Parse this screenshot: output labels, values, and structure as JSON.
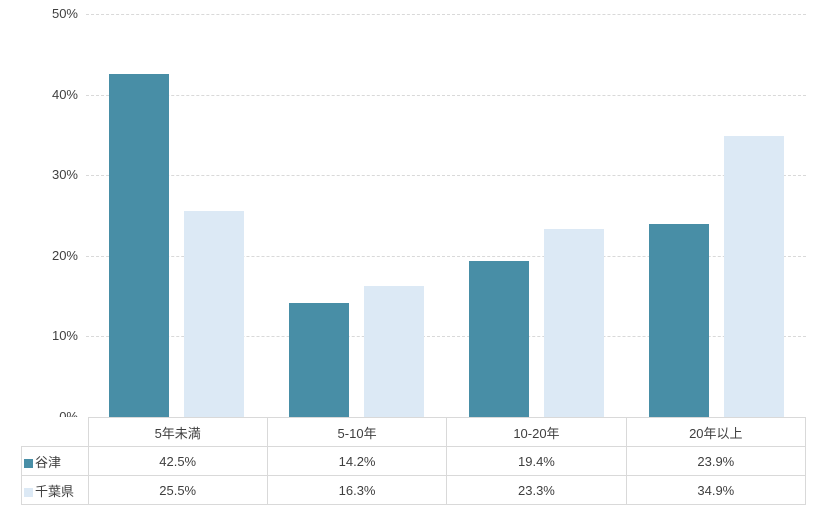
{
  "page": {
    "background": "#ffffff",
    "text_color": "#3f3f3f",
    "gridline_color": "#d9d9d9",
    "table_border_color": "#d9d9d9"
  },
  "chart_data": {
    "type": "bar",
    "title": "",
    "xlabel": "",
    "ylabel": "",
    "categories": [
      "5年未満",
      "5-10年",
      "10-20年",
      "20年以上"
    ],
    "series": [
      {
        "name": "谷津",
        "color": "#488ea6",
        "values": [
          42.5,
          14.2,
          19.4,
          23.9
        ],
        "formatted": [
          "42.5%",
          "14.2%",
          "19.4%",
          "23.9%"
        ]
      },
      {
        "name": "千葉県",
        "color": "#dce9f5",
        "values": [
          25.5,
          16.3,
          23.3,
          34.9
        ],
        "formatted": [
          "25.5%",
          "16.3%",
          "23.3%",
          "34.9%"
        ]
      }
    ],
    "ylim": [
      0,
      50
    ],
    "yticks": [
      0,
      10,
      20,
      30,
      40,
      50
    ],
    "ytick_labels": [
      "0%",
      "10%",
      "20%",
      "30%",
      "40%",
      "50%"
    ],
    "grid": true,
    "legend_position": "table-row-headers"
  }
}
